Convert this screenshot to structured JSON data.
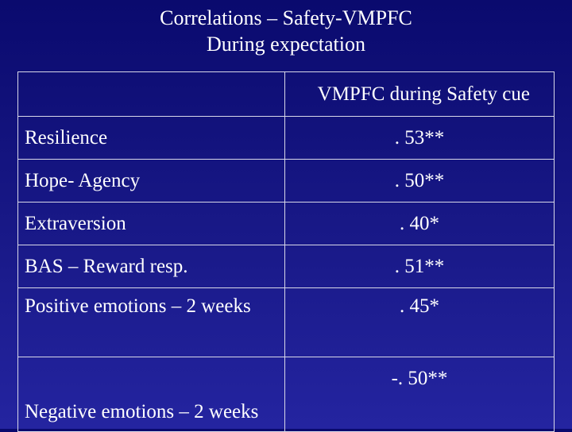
{
  "title": {
    "line1": "Correlations – Safety-VMPFC",
    "line2": "During expectation"
  },
  "table": {
    "header": "VMPFC during Safety cue",
    "rows": [
      {
        "label": "Resilience",
        "value": ". 53**"
      },
      {
        "label": "Hope- Agency",
        "value": ". 50**"
      },
      {
        "label": "Extraversion",
        "value": ". 40*"
      },
      {
        "label": "BAS – Reward resp.",
        "value": ". 51**"
      },
      {
        "label": "Positive emotions – 2 weeks",
        "value": ". 45*"
      },
      {
        "label": "Negative emotions – 2 weeks",
        "value": "-. 50**"
      }
    ]
  },
  "colors": {
    "background_top": "#0a0a6e",
    "background_bottom": "#2424a0",
    "text": "#ffffff",
    "grid": "#d8d8e8"
  }
}
